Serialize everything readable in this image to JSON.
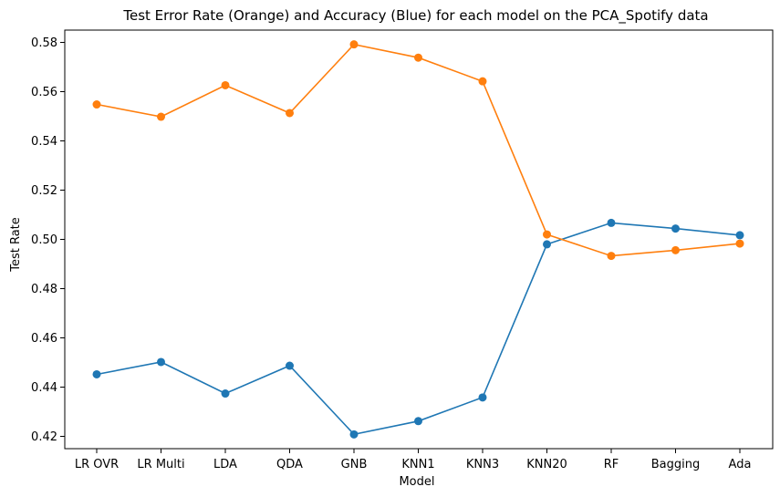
{
  "chart_data": {
    "type": "line",
    "title": "Test Error Rate (Orange) and Accuracy (Blue) for each model on the PCA_Spotify data",
    "xlabel": "Model",
    "ylabel": "Test Rate",
    "categories": [
      "LR OVR",
      "LR Multi",
      "LDA",
      "QDA",
      "GNB",
      "KNN1",
      "KNN3",
      "KNN20",
      "RF",
      "Bagging",
      "Ada"
    ],
    "ylim": [
      0.415,
      0.585
    ],
    "yticks": [
      "0.42",
      "0.44",
      "0.46",
      "0.48",
      "0.50",
      "0.52",
      "0.54",
      "0.56",
      "0.58"
    ],
    "grid": false,
    "series": [
      {
        "color": "#1f77b4",
        "values": [
          0.4452,
          0.4502,
          0.4374,
          0.4487,
          0.4208,
          0.4262,
          0.4358,
          0.498,
          0.5067,
          0.5044,
          0.5017
        ]
      },
      {
        "color": "#ff7f0e",
        "values": [
          0.5548,
          0.5498,
          0.5626,
          0.5513,
          0.5792,
          0.5738,
          0.5642,
          0.502,
          0.4933,
          0.4956,
          0.4983
        ]
      }
    ]
  }
}
